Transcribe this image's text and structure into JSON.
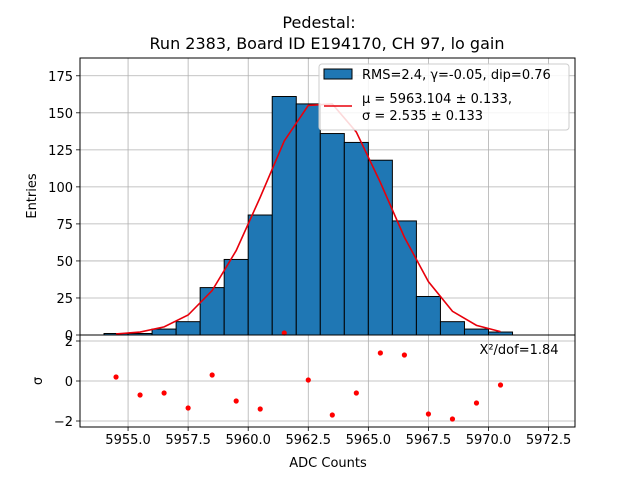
{
  "chart_data": {
    "type": "bar",
    "title": [
      "Pedestal:",
      "Run 2383, Board ID E194170, CH 97, lo gain"
    ],
    "xlabel": "ADC Counts",
    "grid": true,
    "colors": {
      "bar": "#1f77b4",
      "bar_edge": "#000000",
      "fit": "#e8000b",
      "residual": "#ff0000"
    },
    "histogram": {
      "name": "RMS=2.4, γ=-0.05, dip=0.76",
      "ylabel": "Entries",
      "xlim": [
        5953,
        5973.6
      ],
      "ylim": [
        0,
        187
      ],
      "xticks": [
        "5955.0",
        "5957.5",
        "5960.0",
        "5962.5",
        "5965.0",
        "5967.5",
        "5970.0",
        "5972.5"
      ],
      "yticks": [
        "0",
        "25",
        "50",
        "75",
        "100",
        "125",
        "150",
        "175"
      ],
      "bin_edges": [
        5954,
        5955,
        5956,
        5957,
        5958,
        5959,
        5960,
        5961,
        5962,
        5963,
        5964,
        5965,
        5966,
        5967,
        5968,
        5969,
        5970,
        5971
      ],
      "counts": [
        1,
        1,
        4,
        9,
        32,
        51,
        81,
        161,
        156,
        136,
        130,
        118,
        77,
        26,
        9,
        4,
        2
      ]
    },
    "fit": {
      "legend_line1": "μ = 5963.104 ± 0.133,",
      "legend_line2": "σ = 2.535 ± 0.133",
      "x": [
        5954.5,
        5955.5,
        5956.5,
        5957.5,
        5958.5,
        5959.5,
        5960.5,
        5961.5,
        5962.5,
        5963.5,
        5964.5,
        5965.5,
        5966.5,
        5967.5,
        5968.5,
        5969.5,
        5970.5
      ],
      "y": [
        0.7,
        2,
        5.5,
        13.5,
        30,
        57,
        93,
        131,
        155,
        156,
        137,
        103,
        66,
        36,
        16,
        6.5,
        2.3
      ]
    },
    "residuals": {
      "ylabel": "σ",
      "ylim": [
        -2.3,
        2.3
      ],
      "yticks": [
        "−2",
        "0",
        "2"
      ],
      "annotation": "X²/dof=1.84",
      "x": [
        5954.5,
        5955.5,
        5956.5,
        5957.5,
        5958.5,
        5959.5,
        5960.5,
        5961.5,
        5962.5,
        5963.5,
        5964.5,
        5965.5,
        5966.5,
        5967.5,
        5968.5,
        5969.5,
        5970.5
      ],
      "y": [
        0.2,
        -0.7,
        -0.6,
        -1.35,
        0.3,
        -1.0,
        -1.4,
        2.4,
        0.05,
        -1.7,
        -0.6,
        1.4,
        1.3,
        -1.65,
        -1.9,
        -1.1,
        -0.2
      ]
    }
  }
}
